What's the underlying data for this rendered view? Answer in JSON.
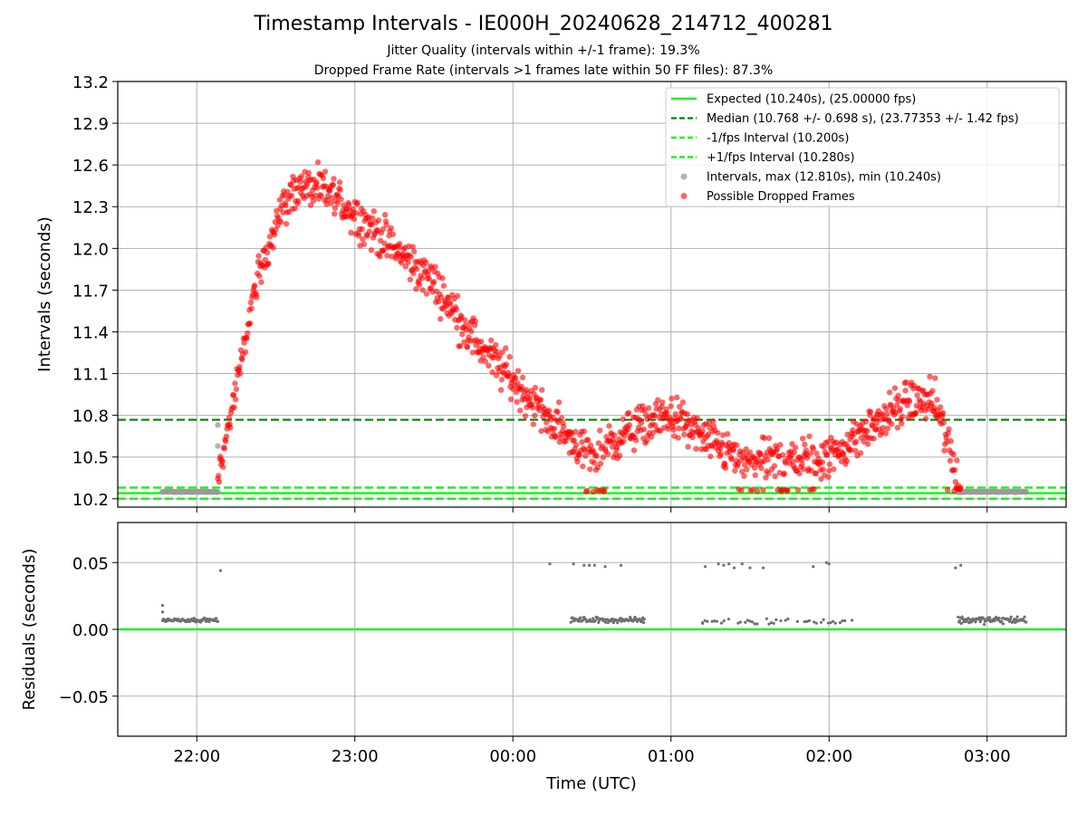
{
  "title": "Timestamp Intervals - IE000H_20240628_214712_400281",
  "subtitle_1": "Jitter Quality (intervals within +/-1 frame): 19.3%",
  "subtitle_2": "Dropped Frame Rate (intervals >1 frames late within 50 FF files): 87.3%",
  "colors": {
    "expected": "#22ee22",
    "median": "#008000",
    "interval_lines": "#22ee22",
    "intervals": "#999999",
    "dropped": "#ff0000",
    "residuals": "#707070",
    "grid": "#b0b0b0"
  },
  "chart_data": [
    {
      "type": "scatter",
      "ylabel": "Intervals (seconds)",
      "xlabel": "",
      "ylim": [
        10.14,
        13.2
      ],
      "yticks": [
        "13.2",
        "12.9",
        "12.6",
        "12.3",
        "12.0",
        "11.7",
        "11.4",
        "11.1",
        "10.8",
        "10.5",
        "10.2"
      ],
      "xlim": [
        "21:30",
        "03:30"
      ],
      "grid": true,
      "legend_position": "top-right",
      "reference_lines": [
        {
          "name": "Expected (10.240s), (25.00000 fps)",
          "y": 10.24,
          "style": "solid"
        },
        {
          "name": "Median (10.768 +/- 0.698 s), (23.77353 +/- 1.42 fps)",
          "y": 10.768,
          "style": "dashed"
        },
        {
          "name": "-1/fps Interval (10.200s)",
          "y": 10.2,
          "style": "dashed"
        },
        {
          "name": "+1/fps Interval (10.280s)",
          "y": 10.28,
          "style": "dashed"
        }
      ],
      "series": [
        {
          "name": "Intervals, max (12.810s), min (10.240s)",
          "segments": [
            {
              "x_start": "21:47",
              "x_end": "22:08",
              "y": 10.25
            },
            {
              "x_start": "02:49",
              "x_end": "03:15",
              "y": 10.25
            }
          ],
          "points": [
            {
              "x": "22:08",
              "y": 10.73
            },
            {
              "x": "22:08",
              "y": 10.58
            }
          ]
        },
        {
          "name": "Possible Dropped Frames",
          "trend": [
            {
              "x": "22:08",
              "y": 10.35
            },
            {
              "x": "22:15",
              "y": 11.0
            },
            {
              "x": "22:22",
              "y": 11.7
            },
            {
              "x": "22:30",
              "y": 12.2
            },
            {
              "x": "22:38",
              "y": 12.45
            },
            {
              "x": "22:50",
              "y": 12.4
            },
            {
              "x": "23:00",
              "y": 12.25
            },
            {
              "x": "23:15",
              "y": 12.0
            },
            {
              "x": "23:30",
              "y": 11.75
            },
            {
              "x": "23:45",
              "y": 11.35
            },
            {
              "x": "00:00",
              "y": 11.05
            },
            {
              "x": "00:15",
              "y": 10.75
            },
            {
              "x": "00:30",
              "y": 10.5
            },
            {
              "x": "00:45",
              "y": 10.7
            },
            {
              "x": "01:00",
              "y": 10.8
            },
            {
              "x": "01:15",
              "y": 10.6
            },
            {
              "x": "01:30",
              "y": 10.45
            },
            {
              "x": "01:45",
              "y": 10.5
            },
            {
              "x": "02:00",
              "y": 10.5
            },
            {
              "x": "02:15",
              "y": 10.7
            },
            {
              "x": "02:30",
              "y": 10.9
            },
            {
              "x": "02:40",
              "y": 10.9
            },
            {
              "x": "02:46",
              "y": 10.55
            },
            {
              "x": "02:50",
              "y": 10.26
            }
          ],
          "spread": 0.22,
          "floor_clusters": [
            "00:25-00:35",
            "01:25-01:55",
            "02:45-02:52"
          ]
        }
      ]
    },
    {
      "type": "scatter",
      "ylabel": "Residuals (seconds)",
      "xlabel": "Time (UTC)",
      "ylim": [
        -0.08,
        0.08
      ],
      "yticks": [
        "0.05",
        "0.00",
        "−0.05"
      ],
      "xticks": [
        "22:00",
        "23:00",
        "00:00",
        "01:00",
        "02:00",
        "03:00"
      ],
      "xlim": [
        "21:30",
        "03:30"
      ],
      "grid": true,
      "reference_lines": [
        {
          "name": "zero",
          "y": 0.0,
          "style": "solid"
        }
      ],
      "series": [
        {
          "name": "residuals",
          "clusters": [
            {
              "x_start": "21:47",
              "x_end": "22:08",
              "y_center": 0.007,
              "spread": 0.002
            },
            {
              "x_start": "00:22",
              "x_end": "00:50",
              "y_center": 0.007,
              "spread": 0.003
            },
            {
              "x_start": "01:12",
              "x_end": "02:10",
              "y_center": 0.006,
              "spread": 0.003
            },
            {
              "x_start": "02:49",
              "x_end": "03:15",
              "y_center": 0.007,
              "spread": 0.004
            }
          ],
          "points": [
            {
              "x": "21:47",
              "y": 0.018
            },
            {
              "x": "21:47",
              "y": 0.013
            },
            {
              "x": "22:09",
              "y": 0.044
            },
            {
              "x": "00:14",
              "y": 0.049
            },
            {
              "x": "00:23",
              "y": 0.049
            },
            {
              "x": "00:27",
              "y": 0.048
            },
            {
              "x": "00:29",
              "y": 0.048
            },
            {
              "x": "00:31",
              "y": 0.048
            },
            {
              "x": "00:35",
              "y": 0.047
            },
            {
              "x": "00:41",
              "y": 0.048
            },
            {
              "x": "00:47",
              "y": 0.007
            },
            {
              "x": "01:13",
              "y": 0.047
            },
            {
              "x": "01:18",
              "y": 0.049
            },
            {
              "x": "01:20",
              "y": 0.048
            },
            {
              "x": "01:22",
              "y": 0.049
            },
            {
              "x": "01:24",
              "y": 0.046
            },
            {
              "x": "01:27",
              "y": 0.049
            },
            {
              "x": "01:30",
              "y": 0.046
            },
            {
              "x": "01:35",
              "y": 0.046
            },
            {
              "x": "01:54",
              "y": 0.047
            },
            {
              "x": "01:59",
              "y": 0.05
            },
            {
              "x": "02:00",
              "y": 0.049
            },
            {
              "x": "01:12",
              "y": 0.005
            },
            {
              "x": "02:48",
              "y": 0.046
            },
            {
              "x": "02:50",
              "y": 0.048
            }
          ]
        }
      ]
    }
  ]
}
